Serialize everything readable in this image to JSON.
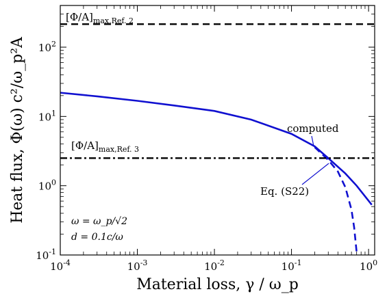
{
  "chart_data": {
    "type": "line",
    "xscale": "log",
    "yscale": "log",
    "xlim": [
      0.0001,
      1.2
    ],
    "ylim": [
      0.1,
      400
    ],
    "xlabel": "Material loss, γ / ω_p",
    "ylabel": "Heat flux, Φ(ω) c²/ω_p²A",
    "x_ticks": [
      {
        "value": 0.0001,
        "base": "10",
        "exp": "-4"
      },
      {
        "value": 0.001,
        "base": "10",
        "exp": "-3"
      },
      {
        "value": 0.01,
        "base": "10",
        "exp": "-2"
      },
      {
        "value": 0.1,
        "base": "10",
        "exp": "-1"
      },
      {
        "value": 1,
        "base": "10",
        "exp": "0"
      }
    ],
    "y_ticks": [
      {
        "value": 0.1,
        "base": "10",
        "exp": "-1"
      },
      {
        "value": 1,
        "base": "10",
        "exp": "0"
      },
      {
        "value": 10,
        "base": "10",
        "exp": "1"
      },
      {
        "value": 100,
        "base": "10",
        "exp": "2"
      }
    ],
    "series": [
      {
        "name": "computed",
        "color": "#1010d0",
        "style": "solid",
        "x": [
          0.0001,
          0.0003,
          0.001,
          0.003,
          0.01,
          0.03,
          0.1,
          0.2,
          0.3,
          0.5,
          0.7,
          1.1
        ],
        "y": [
          22,
          19.5,
          16.8,
          14.4,
          12.0,
          9.0,
          5.6,
          3.7,
          2.5,
          1.5,
          1.0,
          0.53
        ]
      },
      {
        "name": "Eq. (S22)",
        "color": "#1010d0",
        "style": "dashed",
        "x": [
          0.2,
          0.3,
          0.4,
          0.5,
          0.6,
          0.65,
          0.7
        ],
        "y": [
          3.6,
          2.35,
          1.6,
          0.95,
          0.45,
          0.25,
          0.11
        ]
      },
      {
        "name": "[Φ/A]max,Ref. 2",
        "color": "#000000",
        "style": "dashed",
        "x": [
          0.0001,
          1.2
        ],
        "y": [
          215,
          215
        ]
      },
      {
        "name": "[Φ/A]max,Ref. 3",
        "color": "#000000",
        "style": "dashdot",
        "x": [
          0.0001,
          1.2
        ],
        "y": [
          2.5,
          2.5
        ]
      }
    ],
    "annotations": {
      "ref2": {
        "main": "[Φ/A]",
        "sub": "max,Ref. 2"
      },
      "ref3": {
        "main": "[Φ/A]",
        "sub": "max,Ref. 3"
      },
      "computed": "computed",
      "eq": "Eq. (S22)",
      "omega": "ω = ω_p/√2",
      "d": "d = 0.1c/ω"
    }
  }
}
